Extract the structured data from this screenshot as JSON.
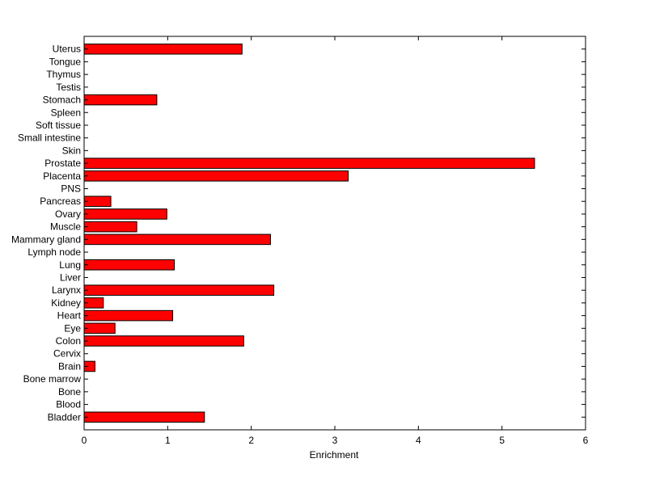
{
  "chart_data": {
    "type": "bar",
    "orientation": "horizontal",
    "xlabel": "Enrichment",
    "ylabel": "",
    "title": "",
    "xlim": [
      0,
      6
    ],
    "xticks": [
      0,
      1,
      2,
      3,
      4,
      5,
      6
    ],
    "grid": false,
    "bar_color": "#ff0000",
    "categories": [
      "Bladder",
      "Blood",
      "Bone",
      "Bone marrow",
      "Brain",
      "Cervix",
      "Colon",
      "Eye",
      "Heart",
      "Kidney",
      "Larynx",
      "Liver",
      "Lung",
      "Lymph node",
      "Mammary gland",
      "Muscle",
      "Ovary",
      "Pancreas",
      "PNS",
      "Placenta",
      "Prostate",
      "Skin",
      "Small intestine",
      "Soft tissue",
      "Spleen",
      "Stomach",
      "Testis",
      "Thymus",
      "Tongue",
      "Uterus"
    ],
    "values": [
      1.44,
      0,
      0,
      0,
      0.13,
      0,
      1.91,
      0.37,
      1.06,
      0.23,
      2.27,
      0,
      1.08,
      0,
      2.23,
      0.63,
      0.99,
      0.32,
      0,
      3.16,
      5.39,
      0,
      0,
      0,
      0,
      0.87,
      0,
      0,
      0,
      1.89
    ]
  }
}
